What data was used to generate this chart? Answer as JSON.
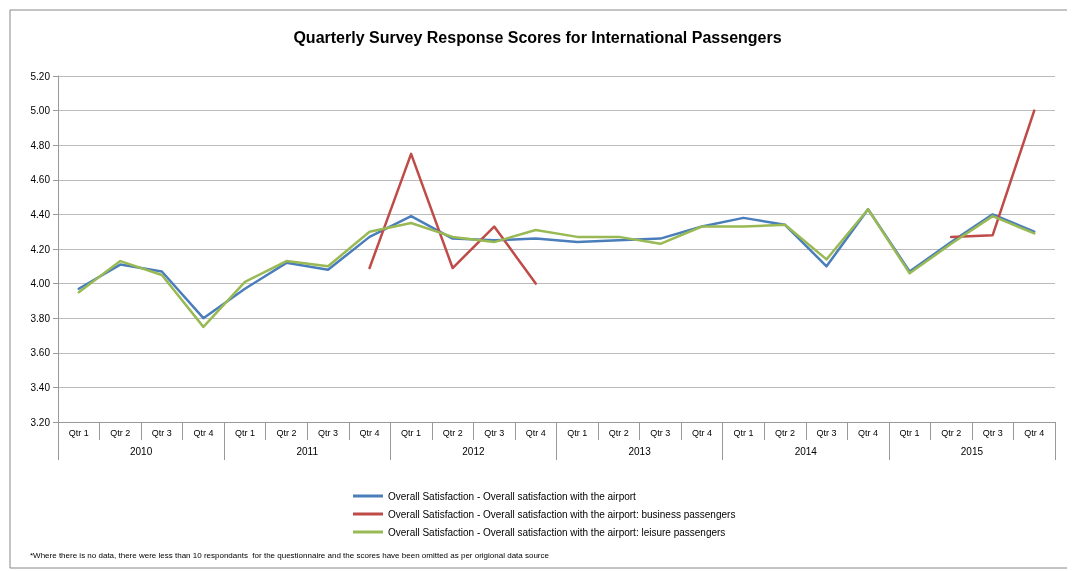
{
  "chart_data": {
    "type": "line",
    "title": "Quarterly Survey Response Scores for International Passengers",
    "categories": [
      "Qtr 1",
      "Qtr 2",
      "Qtr 3",
      "Qtr 4",
      "Qtr 1",
      "Qtr 2",
      "Qtr 3",
      "Qtr 4",
      "Qtr 1",
      "Qtr 2",
      "Qtr 3",
      "Qtr 4",
      "Qtr 1",
      "Qtr 2",
      "Qtr 3",
      "Qtr 4",
      "Qtr 1",
      "Qtr 2",
      "Qtr 3",
      "Qtr 4",
      "Qtr 1",
      "Qtr 2",
      "Qtr 3",
      "Qtr 4"
    ],
    "series": [
      {
        "name": "Overall Satisfaction - Overall satisfaction with the airport",
        "color": "#4a7ebb",
        "values": [
          3.97,
          4.11,
          4.07,
          3.8,
          3.97,
          4.12,
          4.08,
          4.27,
          4.39,
          4.26,
          4.25,
          4.26,
          4.24,
          4.25,
          4.26,
          4.33,
          4.38,
          4.34,
          4.1,
          4.43,
          4.07,
          4.24,
          4.4,
          4.3
        ]
      },
      {
        "name": "Overall Satisfaction - Overall satisfaction with the airport: business passengers",
        "color": "#be4b48",
        "values": [
          null,
          null,
          null,
          null,
          null,
          null,
          null,
          4.09,
          4.75,
          4.09,
          4.33,
          4.0,
          null,
          null,
          null,
          null,
          null,
          null,
          null,
          null,
          null,
          4.27,
          4.28,
          5.0
        ]
      },
      {
        "name": "Overall Satisfaction - Overall satisfaction with the airport: leisure passengers",
        "color": "#98b954",
        "values": [
          3.95,
          4.13,
          4.05,
          3.75,
          4.01,
          4.13,
          4.1,
          4.3,
          4.35,
          4.27,
          4.24,
          4.31,
          4.27,
          4.27,
          4.23,
          4.33,
          4.33,
          4.34,
          4.14,
          4.43,
          4.06,
          4.23,
          4.39,
          4.29
        ]
      }
    ],
    "ylim": [
      3.2,
      5.2
    ],
    "yticks": [
      {
        "value": 3.2,
        "label": "3.20"
      },
      {
        "value": 3.4,
        "label": "3.40"
      },
      {
        "value": 3.6,
        "label": "3.60"
      },
      {
        "value": 3.8,
        "label": "3.80"
      },
      {
        "value": 4.0,
        "label": "4.00"
      },
      {
        "value": 4.2,
        "label": "4.20"
      },
      {
        "value": 4.4,
        "label": "4.40"
      },
      {
        "value": 4.6,
        "label": "4.60"
      },
      {
        "value": 4.8,
        "label": "4.80"
      },
      {
        "value": 5.0,
        "label": "5.00"
      },
      {
        "value": 5.2,
        "label": "5.20"
      }
    ],
    "annotations": [
      "2010",
      "2011",
      "2012",
      "2013",
      "2014",
      "2015",
      "*Where there is no data, there were less than 10 respondants  for the questionnaire and the scores have been omitted as per origional data source"
    ],
    "grid": "y",
    "legend": "bottom",
    "marker": "none",
    "line_style": "solid"
  }
}
